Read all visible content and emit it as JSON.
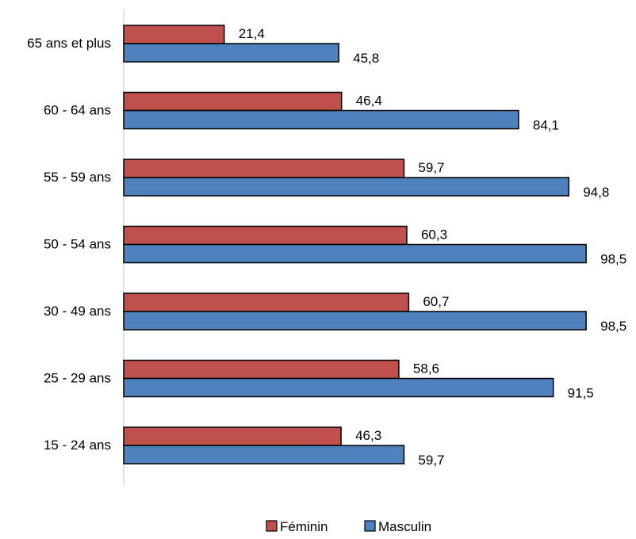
{
  "chart_data": {
    "type": "bar",
    "orientation": "horizontal",
    "categories": [
      "15 - 24 ans",
      "25 - 29 ans",
      "30 - 49 ans",
      "50 - 54 ans",
      "55 - 59 ans",
      "60 - 64 ans",
      "65 ans et plus"
    ],
    "value_labels": {
      "Féminin": [
        "46,3",
        "58,6",
        "60,7",
        "60,3",
        "59,7",
        "46,4",
        "21,4"
      ],
      "Masculin": [
        "59,7",
        "91,5",
        "98,5",
        "98,5",
        "94,8",
        "84,1",
        "45,8"
      ]
    },
    "series": [
      {
        "name": "Féminin",
        "color": "#c0504d",
        "values": [
          46.3,
          58.6,
          60.7,
          60.3,
          59.7,
          46.4,
          21.4
        ]
      },
      {
        "name": "Masculin",
        "color": "#4f81bd",
        "values": [
          59.7,
          91.5,
          98.5,
          98.5,
          94.8,
          84.1,
          45.8
        ]
      }
    ],
    "xlim": [
      0,
      100
    ],
    "grid": false,
    "legend_position": "bottom-center",
    "axis_color": "#d9d9d9",
    "bar_border_color": "#000000"
  }
}
